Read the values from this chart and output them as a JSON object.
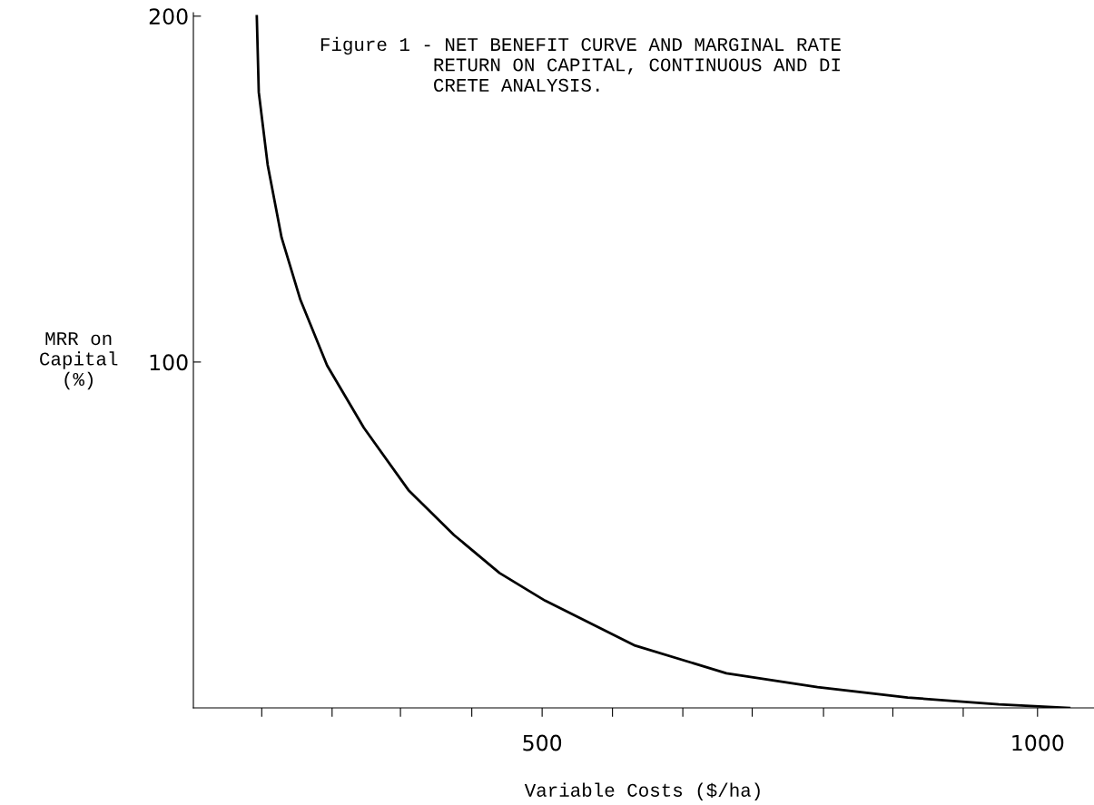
{
  "chart_data": {
    "type": "line",
    "title": "Figure 1 - NET BENEFIT CURVE AND MARGINAL RATE\n          RETURN ON CAPITAL, CONTINUOUS AND DI\n          CRETE ANALYSIS.",
    "xlabel": "Variable Costs ($/ha)",
    "ylabel": "MRR on\nCapital\n(%)",
    "series": [
      {
        "color": "#000000",
        "x": [
          212,
          214,
          223,
          237,
          256,
          283,
          320,
          365,
          411,
          457,
          503,
          594,
          686,
          778,
          869,
          961,
          1032
        ],
        "values": [
          200,
          178,
          157,
          136,
          118,
          99,
          81,
          63,
          50,
          39,
          31,
          18,
          10,
          6,
          3,
          1,
          0
        ]
      }
    ],
    "xlim": [
      148,
      1057
    ],
    "ylim": [
      0,
      201
    ],
    "xticks": [
      {
        "value": 217,
        "label": null
      },
      {
        "value": 288,
        "label": null
      },
      {
        "value": 357,
        "label": null
      },
      {
        "value": 429,
        "label": null
      },
      500,
      {
        "value": 571,
        "label": null
      },
      {
        "value": 642,
        "label": null
      },
      {
        "value": 712,
        "label": null
      },
      {
        "value": 784,
        "label": null
      },
      {
        "value": 854,
        "label": null
      },
      {
        "value": 925,
        "label": null
      },
      1000
    ],
    "yticks": [
      100,
      200
    ],
    "grid": false,
    "legend": false,
    "marker": "none",
    "line_style": "solid"
  }
}
